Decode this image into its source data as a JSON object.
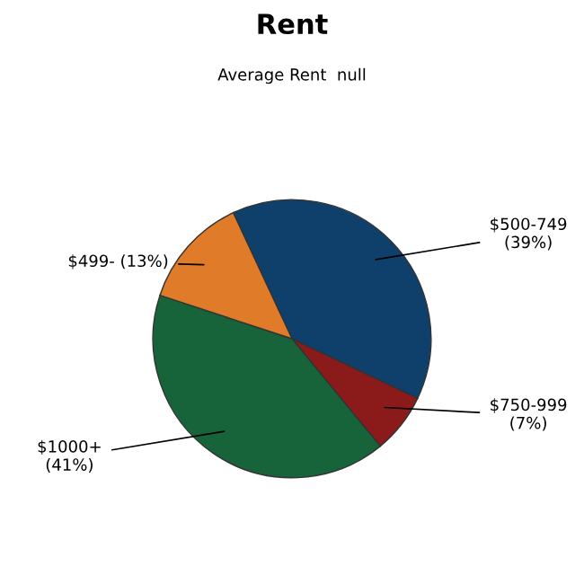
{
  "chart_data": {
    "type": "pie",
    "title": "Rent",
    "subtitle": "Average Rent  null",
    "categories": [
      "$500-749",
      "$750-999",
      "$1000+",
      "$499-"
    ],
    "values": [
      39,
      7,
      41,
      13
    ],
    "value_labels": [
      "(39%)",
      "(7%)",
      "(41%)",
      "(13%)"
    ],
    "colors": [
      "#0f3f6b",
      "#8b1a1a",
      "#17643a",
      "#e07b2a"
    ],
    "legend": false
  }
}
